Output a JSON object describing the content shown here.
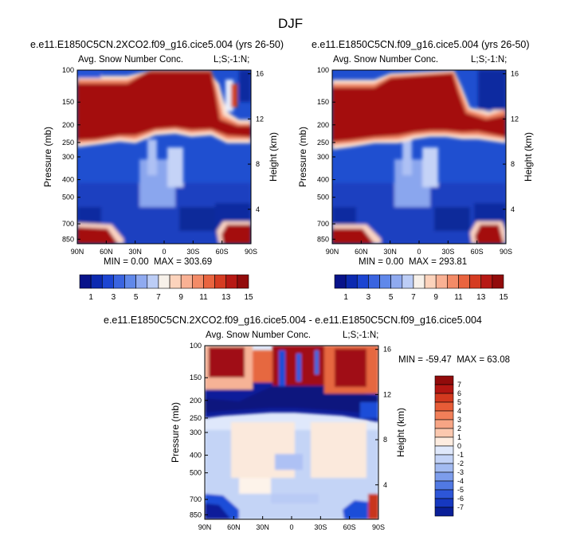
{
  "figure": {
    "title": "DJF",
    "colors": {
      "background": "#ffffff",
      "text": "#000000"
    }
  },
  "chart_data": [
    {
      "type": "heatmap",
      "panel": "top-left",
      "title": "e.e11.E1850C5CN.2XCO2.f09_g16.cice5.004 (yrs 26-50)",
      "subtitle_left": "Avg. Snow Number Conc.",
      "subtitle_right": "L;S;-1:N;",
      "xlabel": "",
      "ylabel": "Pressure (mb)",
      "ylabel_right": "Height (km)",
      "x_ticks": [
        "90N",
        "60N",
        "30N",
        "0",
        "30S",
        "60S",
        "90S"
      ],
      "y_ticks": [
        "100",
        "150",
        "200",
        "250",
        "300",
        "400",
        "500",
        "700",
        "850"
      ],
      "y_ticks_right": [
        "16",
        "12",
        "8",
        "4"
      ],
      "stats": {
        "min_label": "MIN =",
        "min": "0.00",
        "max_label": "MAX =",
        "max": "303.69"
      },
      "colorbar": {
        "orientation": "horizontal",
        "labels": [
          "1",
          "3",
          "5",
          "7",
          "9",
          "11",
          "13",
          "15"
        ]
      }
    },
    {
      "type": "heatmap",
      "panel": "top-right",
      "title": "e.e11.E1850C5CN.f09_g16.cice5.004 (yrs 26-50)",
      "subtitle_left": "Avg. Snow Number Conc.",
      "subtitle_right": "L;S;-1:N;",
      "xlabel": "",
      "ylabel": "Pressure (mb)",
      "ylabel_right": "Height (km)",
      "x_ticks": [
        "90N",
        "60N",
        "30N",
        "0",
        "30S",
        "60S",
        "90S"
      ],
      "y_ticks": [
        "100",
        "150",
        "200",
        "250",
        "300",
        "400",
        "500",
        "700",
        "850"
      ],
      "y_ticks_right": [
        "16",
        "12",
        "8",
        "4"
      ],
      "stats": {
        "min_label": "MIN =",
        "min": "0.00",
        "max_label": "MAX =",
        "max": "293.81"
      },
      "colorbar": {
        "orientation": "horizontal",
        "labels": [
          "1",
          "3",
          "5",
          "7",
          "9",
          "11",
          "13",
          "15"
        ]
      }
    },
    {
      "type": "heatmap",
      "panel": "bottom",
      "title": "e.e11.E1850C5CN.2XCO2.f09_g16.cice5.004 - e.e11.E1850C5CN.f09_g16.cice5.004",
      "subtitle_left": "Avg. Snow Number Conc.",
      "subtitle_right": "L;S;-1:N;",
      "xlabel": "",
      "ylabel": "Pressure (mb)",
      "ylabel_right": "Height (km)",
      "x_ticks": [
        "90N",
        "60N",
        "30N",
        "0",
        "30S",
        "60S",
        "90S"
      ],
      "y_ticks": [
        "100",
        "150",
        "200",
        "250",
        "300",
        "400",
        "500",
        "700",
        "850"
      ],
      "y_ticks_right": [
        "16",
        "12",
        "8",
        "4"
      ],
      "stats": {
        "min_label": "MIN =",
        "min": "-59.47",
        "max_label": "MAX =",
        "max": "63.08"
      },
      "colorbar": {
        "orientation": "vertical",
        "labels": [
          "7",
          "6",
          "5",
          "4",
          "3",
          "2",
          "1",
          "0",
          "-1",
          "-2",
          "-3",
          "-4",
          "-5",
          "-6",
          "-7"
        ]
      }
    }
  ]
}
